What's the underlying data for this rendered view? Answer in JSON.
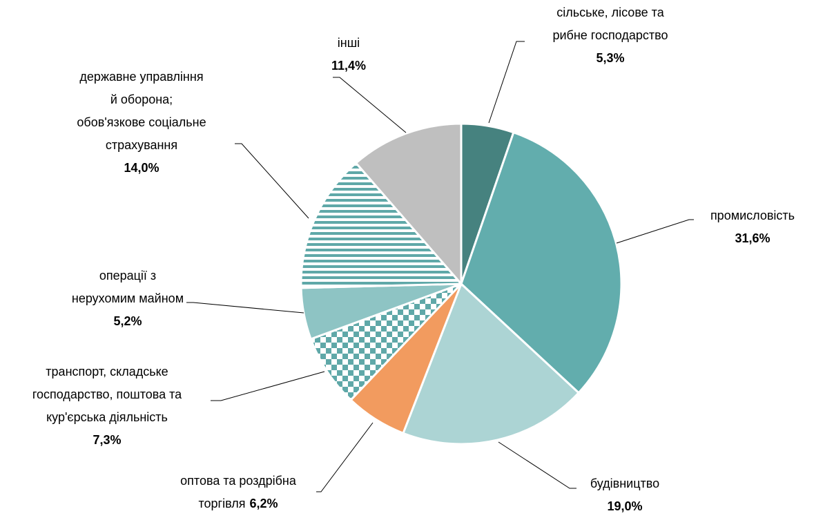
{
  "chart_data": {
    "type": "pie",
    "categories": [
      "сільське, лісове та\nрибне господарство",
      "промисловість",
      "будівництво",
      "оптова та роздрібна\nторгівля",
      "транспорт, складське\nгосподарство, поштова та\nкур'єрська діяльність",
      "операції з\nнерухомим майном",
      "державне управління\nй оборона;\nобов'язкове соціальне\nстрахування",
      "інші"
    ],
    "values": [
      5.3,
      31.6,
      19.0,
      6.2,
      7.3,
      5.2,
      14.0,
      11.4
    ],
    "value_labels": [
      "5,3%",
      "31,6%",
      "19,0%",
      "6,2%",
      "7,3%",
      "5,2%",
      "14,0%",
      "11,4%"
    ],
    "colors": [
      "#46827f",
      "#62adad",
      "#acd4d4",
      "#f29b5f",
      "#5fa8a8",
      "#8ec4c4",
      "#5fa8a8",
      "#bfbfbf"
    ],
    "patterns": [
      null,
      null,
      null,
      null,
      "checker",
      null,
      "stripes",
      null
    ]
  }
}
